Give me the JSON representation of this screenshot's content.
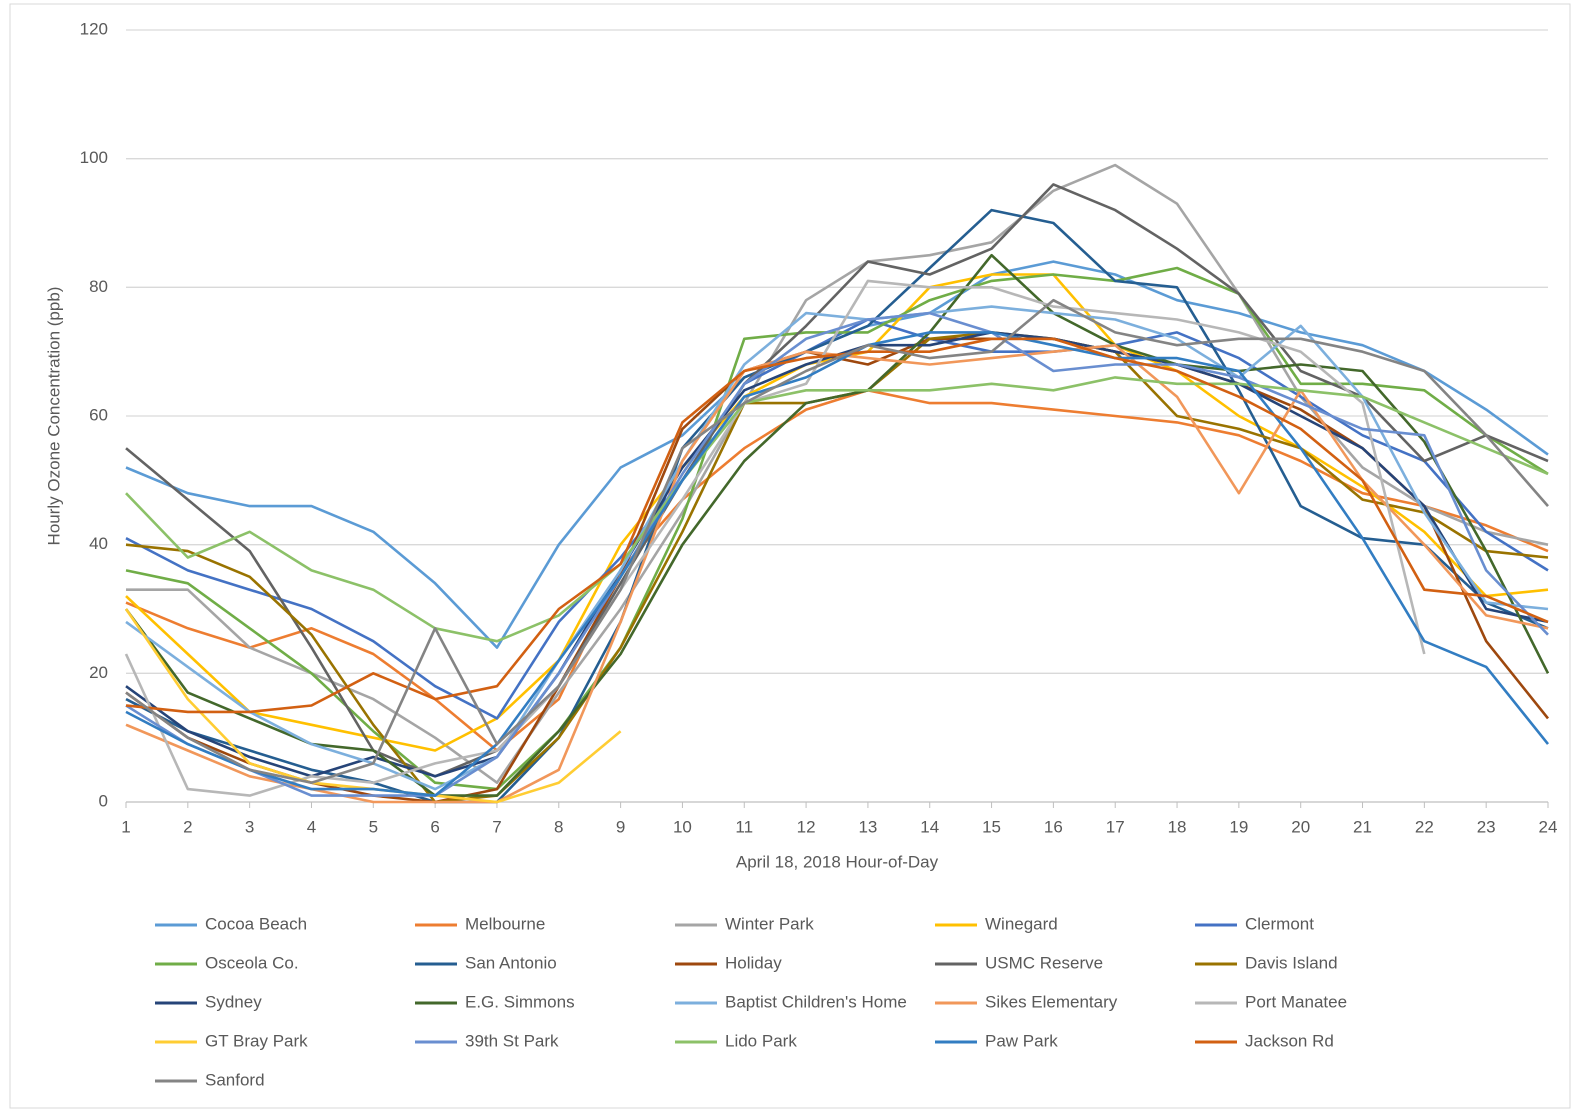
{
  "chart_data": {
    "type": "line",
    "x_label": "April 18, 2018 Hour-of-Day",
    "y_label": "Hourly Ozone Concentration (ppb)",
    "x": [
      1,
      2,
      3,
      4,
      5,
      6,
      7,
      8,
      9,
      10,
      11,
      12,
      13,
      14,
      15,
      16,
      17,
      18,
      19,
      20,
      21,
      22,
      23,
      24
    ],
    "xlim": [
      1,
      24
    ],
    "xticks": [
      1,
      2,
      3,
      4,
      5,
      6,
      7,
      8,
      9,
      10,
      11,
      12,
      13,
      14,
      15,
      16,
      17,
      18,
      19,
      20,
      21,
      22,
      23,
      24
    ],
    "ylim": [
      0,
      120
    ],
    "yticks": [
      0,
      20,
      40,
      60,
      80,
      100,
      120
    ],
    "grid": true,
    "legend": "bottom",
    "series": [
      {
        "name": "Cocoa Beach",
        "color": "#5b9bd5",
        "values": [
          52,
          48,
          46,
          46,
          42,
          34,
          24,
          40,
          52,
          57,
          66,
          70,
          74,
          76,
          82,
          84,
          82,
          78,
          76,
          73,
          71,
          67,
          61,
          54
        ]
      },
      {
        "name": "Melbourne",
        "color": "#ed7d31",
        "values": [
          31,
          27,
          24,
          27,
          23,
          16,
          8,
          16,
          36,
          47,
          55,
          61,
          64,
          62,
          62,
          61,
          60,
          59,
          57,
          53,
          48,
          46,
          43,
          39
        ]
      },
      {
        "name": "Winter Park",
        "color": "#a5a5a5",
        "values": [
          33,
          33,
          24,
          20,
          16,
          10,
          3,
          17,
          30,
          45,
          62,
          78,
          84,
          85,
          87,
          95,
          99,
          93,
          79,
          63,
          52,
          46,
          42,
          40
        ]
      },
      {
        "name": "Winegard",
        "color": "#ffc000",
        "values": [
          32,
          23,
          14,
          12,
          10,
          8,
          13,
          22,
          40,
          52,
          63,
          68,
          70,
          80,
          82,
          82,
          71,
          67,
          60,
          55,
          49,
          42,
          32,
          33
        ]
      },
      {
        "name": "Clermont",
        "color": "#4472c4",
        "values": [
          41,
          36,
          33,
          30,
          25,
          18,
          13,
          28,
          38,
          50,
          65,
          70,
          75,
          72,
          70,
          70,
          71,
          73,
          69,
          63,
          57,
          53,
          42,
          36
        ]
      },
      {
        "name": "Osceola Co.",
        "color": "#70ad47",
        "values": [
          36,
          34,
          27,
          20,
          11,
          3,
          2,
          11,
          24,
          44,
          72,
          73,
          73,
          78,
          81,
          82,
          81,
          83,
          79,
          65,
          65,
          64,
          57,
          51
        ]
      },
      {
        "name": "San Antonio",
        "color": "#255e91",
        "values": [
          16,
          11,
          8,
          5,
          3,
          0,
          0,
          10,
          28,
          55,
          66,
          70,
          74,
          83,
          92,
          90,
          81,
          80,
          64,
          46,
          41,
          40,
          31,
          27
        ]
      },
      {
        "name": "Holiday",
        "color": "#9e480e",
        "values": [
          17,
          10,
          6,
          3,
          1,
          0,
          2,
          18,
          35,
          58,
          67,
          70,
          68,
          72,
          72,
          72,
          70,
          68,
          65,
          61,
          55,
          46,
          25,
          13
        ]
      },
      {
        "name": "USMC Reserve",
        "color": "#636363",
        "values": [
          55,
          47,
          39,
          24,
          8,
          4,
          8,
          18,
          34,
          50,
          65,
          74,
          84,
          82,
          86,
          96,
          92,
          86,
          79,
          67,
          63,
          53,
          57,
          53
        ]
      },
      {
        "name": "Davis Island",
        "color": "#997300",
        "values": [
          40,
          39,
          35,
          26,
          12,
          0,
          1,
          10,
          24,
          42,
          62,
          62,
          64,
          72,
          73,
          72,
          70,
          60,
          58,
          55,
          47,
          45,
          39,
          38
        ]
      },
      {
        "name": "Sydney",
        "color": "#264478",
        "values": [
          18,
          11,
          7,
          4,
          7,
          4,
          7,
          20,
          36,
          52,
          64,
          68,
          71,
          71,
          73,
          72,
          70,
          68,
          65,
          60,
          55,
          46,
          30,
          28
        ]
      },
      {
        "name": "E.G. Simmons",
        "color": "#43682b",
        "values": [
          30,
          17,
          13,
          9,
          8,
          1,
          1,
          11,
          23,
          40,
          53,
          62,
          64,
          73,
          85,
          76,
          71,
          68,
          67,
          68,
          67,
          56,
          39,
          20
        ]
      },
      {
        "name": "Baptist Children's Home",
        "color": "#7cafdd",
        "values": [
          28,
          21,
          14,
          9,
          6,
          2,
          7,
          22,
          36,
          53,
          68,
          76,
          75,
          76,
          77,
          76,
          75,
          72,
          66,
          74,
          63,
          45,
          31,
          30
        ]
      },
      {
        "name": "Sikes Elementary",
        "color": "#f1975a",
        "values": [
          12,
          8,
          4,
          2,
          0,
          0,
          0,
          5,
          28,
          53,
          67,
          70,
          69,
          68,
          69,
          70,
          71,
          63,
          48,
          64,
          50,
          40,
          29,
          27
        ]
      },
      {
        "name": "Port Manatee",
        "color": "#b7b7b7",
        "values": [
          23,
          2,
          1,
          4,
          3,
          6,
          8,
          18,
          33,
          47,
          62,
          65,
          81,
          80,
          80,
          77,
          76,
          75,
          73,
          70,
          62,
          23,
          null,
          null
        ]
      },
      {
        "name": "GT Bray Park",
        "color": "#ffcd33",
        "values": [
          30,
          16,
          6,
          3,
          2,
          1,
          0,
          3,
          11,
          null,
          null,
          null,
          null,
          null,
          null,
          null,
          null,
          null,
          null,
          null,
          null,
          null,
          null,
          null
        ]
      },
      {
        "name": "39th St Park",
        "color": "#698ed0",
        "values": [
          15,
          9,
          5,
          1,
          1,
          1,
          7,
          20,
          35,
          51,
          65,
          72,
          75,
          76,
          73,
          67,
          68,
          68,
          66,
          62,
          58,
          57,
          36,
          26
        ]
      },
      {
        "name": "Lido Park",
        "color": "#8cc168",
        "values": [
          48,
          38,
          42,
          36,
          33,
          27,
          25,
          29,
          37,
          50,
          62,
          64,
          64,
          64,
          65,
          64,
          66,
          65,
          65,
          64,
          63,
          59,
          55,
          51
        ]
      },
      {
        "name": "Paw Park",
        "color": "#327dc2",
        "values": [
          14,
          9,
          5,
          2,
          2,
          1,
          9,
          22,
          35,
          50,
          63,
          66,
          71,
          73,
          73,
          71,
          69,
          69,
          67,
          55,
          41,
          25,
          21,
          9
        ]
      },
      {
        "name": "Jackson Rd",
        "color": "#d26012",
        "values": [
          15,
          14,
          14,
          15,
          20,
          16,
          18,
          30,
          37,
          59,
          67,
          69,
          70,
          70,
          72,
          72,
          69,
          67,
          63,
          58,
          50,
          33,
          32,
          28
        ]
      },
      {
        "name": "Sanford",
        "color": "#848484",
        "values": [
          17,
          10,
          5,
          3,
          6,
          27,
          9,
          18,
          33,
          55,
          62,
          67,
          71,
          69,
          70,
          78,
          73,
          71,
          72,
          72,
          70,
          67,
          57,
          46
        ]
      }
    ]
  }
}
